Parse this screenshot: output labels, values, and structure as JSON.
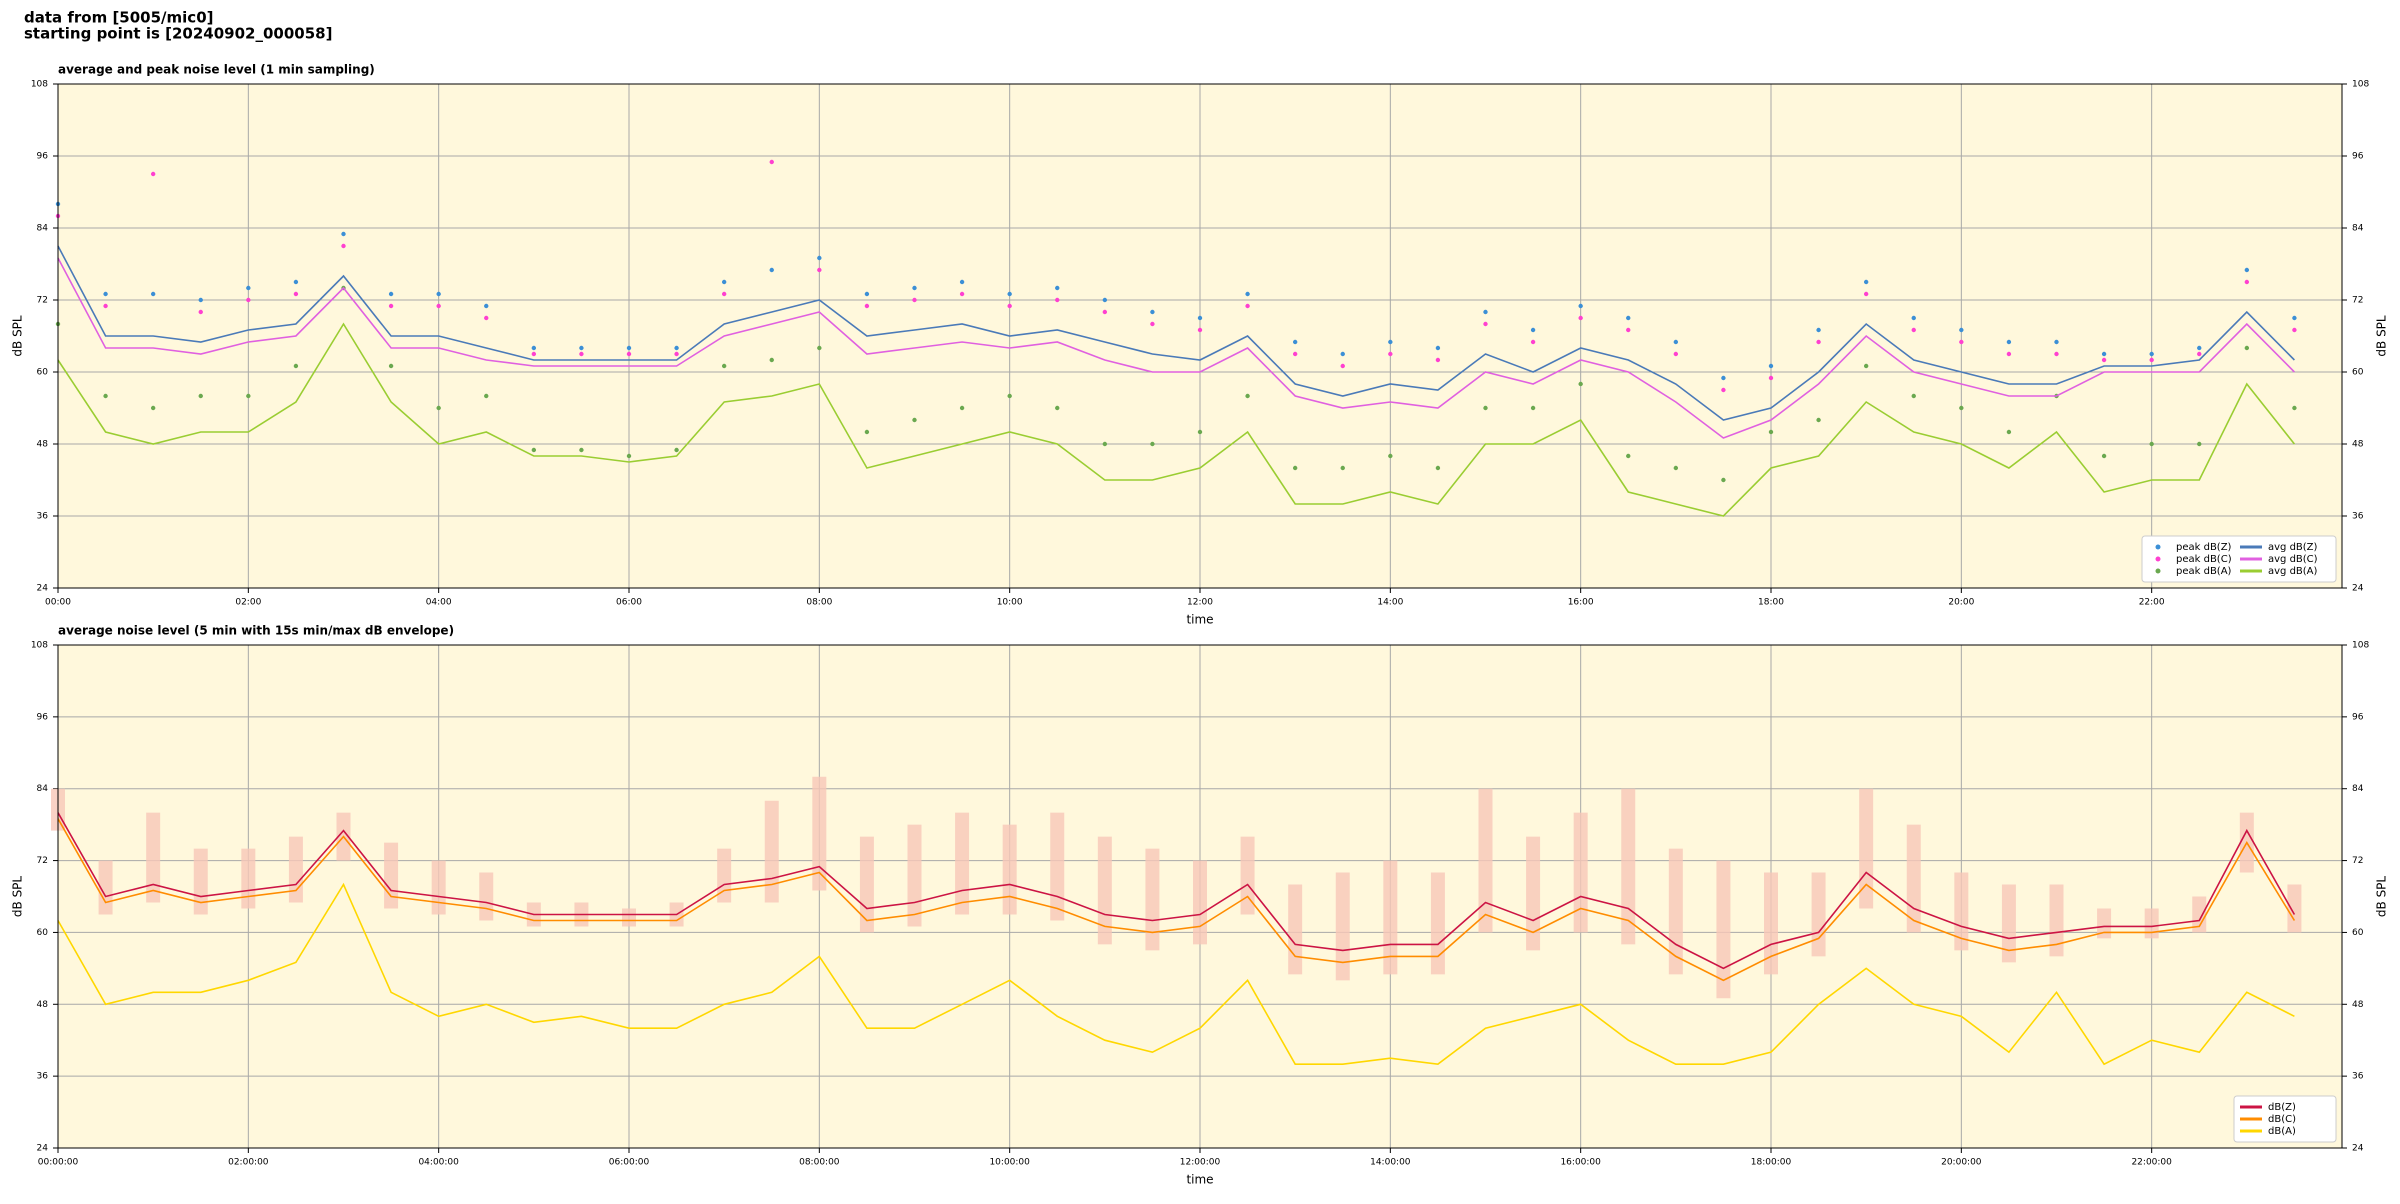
{
  "header": {
    "line1": "data from [5005/mic0]",
    "line2": "starting point is [20240902_000058]"
  },
  "chart_data": [
    {
      "type": "line",
      "title": "average and peak noise level (1 min sampling)",
      "xlabel": "time",
      "ylabel": "dB SPL",
      "legend": "lower right",
      "legend_columns": 2,
      "grid": true,
      "background": "#fff8dc",
      "x": [
        0,
        0.5,
        1,
        1.5,
        2,
        2.5,
        3,
        3.5,
        4,
        4.5,
        5,
        5.5,
        6,
        6.5,
        7,
        7.5,
        8,
        8.5,
        9,
        9.5,
        10,
        10.5,
        11,
        11.5,
        12,
        12.5,
        13,
        13.5,
        14,
        14.5,
        15,
        15.5,
        16,
        16.5,
        17,
        17.5,
        18,
        18.5,
        19,
        19.5,
        20,
        20.5,
        21,
        21.5,
        22,
        22.5,
        23,
        23.5
      ],
      "xlim": [
        0,
        24
      ],
      "xticks": [
        {
          "value": 0,
          "label": "00:00"
        },
        {
          "value": 2,
          "label": "02:00"
        },
        {
          "value": 4,
          "label": "04:00"
        },
        {
          "value": 6,
          "label": "06:00"
        },
        {
          "value": 8,
          "label": "08:00"
        },
        {
          "value": 10,
          "label": "10:00"
        },
        {
          "value": 12,
          "label": "12:00"
        },
        {
          "value": 14,
          "label": "14:00"
        },
        {
          "value": 16,
          "label": "16:00"
        },
        {
          "value": 18,
          "label": "18:00"
        },
        {
          "value": 20,
          "label": "20:00"
        },
        {
          "value": 22,
          "label": "22:00"
        }
      ],
      "ylim": [
        24,
        108
      ],
      "yticks": [
        24,
        36,
        48,
        60,
        72,
        84,
        96,
        108
      ],
      "series": [
        {
          "name": "peak dB(Z)",
          "color": "#3b8fd6",
          "marker": "dot",
          "values": [
            88,
            73,
            73,
            72,
            74,
            75,
            83,
            73,
            73,
            71,
            64,
            64,
            64,
            64,
            75,
            77,
            79,
            73,
            74,
            75,
            73,
            74,
            72,
            70,
            69,
            73,
            65,
            63,
            65,
            64,
            70,
            67,
            71,
            69,
            65,
            59,
            61,
            67,
            75,
            69,
            67,
            65,
            65,
            63,
            63,
            64,
            77,
            69
          ]
        },
        {
          "name": "peak dB(C)",
          "color": "#ff40d0",
          "marker": "dot",
          "values": [
            86,
            71,
            93,
            70,
            72,
            73,
            81,
            71,
            71,
            69,
            63,
            63,
            63,
            63,
            73,
            95,
            77,
            71,
            72,
            73,
            71,
            72,
            70,
            68,
            67,
            71,
            63,
            61,
            63,
            62,
            68,
            65,
            69,
            67,
            63,
            57,
            59,
            65,
            73,
            67,
            65,
            63,
            63,
            62,
            62,
            63,
            75,
            67
          ]
        },
        {
          "name": "peak dB(A)",
          "color": "#6aa84f",
          "marker": "dot",
          "values": [
            68,
            56,
            54,
            56,
            56,
            61,
            74,
            61,
            54,
            56,
            47,
            47,
            46,
            47,
            61,
            62,
            64,
            50,
            52,
            54,
            56,
            54,
            48,
            48,
            50,
            56,
            44,
            44,
            46,
            44,
            54,
            54,
            58,
            46,
            44,
            42,
            50,
            52,
            61,
            56,
            54,
            50,
            56,
            46,
            48,
            48,
            64,
            54
          ]
        },
        {
          "name": "avg dB(Z)",
          "color": "#4a7ab8",
          "marker": "line",
          "values": [
            81,
            66,
            66,
            65,
            67,
            68,
            76,
            66,
            66,
            64,
            62,
            62,
            62,
            62,
            68,
            70,
            72,
            66,
            67,
            68,
            66,
            67,
            65,
            63,
            62,
            66,
            58,
            56,
            58,
            57,
            63,
            60,
            64,
            62,
            58,
            52,
            54,
            60,
            68,
            62,
            60,
            58,
            58,
            61,
            61,
            62,
            70,
            62
          ]
        },
        {
          "name": "avg dB(C)",
          "color": "#e060e0",
          "marker": "line",
          "values": [
            79,
            64,
            64,
            63,
            65,
            66,
            74,
            64,
            64,
            62,
            61,
            61,
            61,
            61,
            66,
            68,
            70,
            63,
            64,
            65,
            64,
            65,
            62,
            60,
            60,
            64,
            56,
            54,
            55,
            54,
            60,
            58,
            62,
            60,
            55,
            49,
            52,
            58,
            66,
            60,
            58,
            56,
            56,
            60,
            60,
            60,
            68,
            60
          ]
        },
        {
          "name": "avg dB(A)",
          "color": "#9acd32",
          "marker": "line",
          "values": [
            62,
            50,
            48,
            50,
            50,
            55,
            68,
            55,
            48,
            50,
            46,
            46,
            45,
            46,
            55,
            56,
            58,
            44,
            46,
            48,
            50,
            48,
            42,
            42,
            44,
            50,
            38,
            38,
            40,
            38,
            48,
            48,
            52,
            40,
            38,
            36,
            44,
            46,
            55,
            50,
            48,
            44,
            50,
            40,
            42,
            42,
            58,
            48
          ]
        }
      ]
    },
    {
      "type": "line",
      "title": "average noise level (5 min with 15s min/max dB envelope)",
      "xlabel": "time",
      "ylabel": "dB SPL",
      "legend": "lower right",
      "legend_columns": 1,
      "grid": true,
      "background": "#fff8dc",
      "x": [
        0,
        0.5,
        1,
        1.5,
        2,
        2.5,
        3,
        3.5,
        4,
        4.5,
        5,
        5.5,
        6,
        6.5,
        7,
        7.5,
        8,
        8.5,
        9,
        9.5,
        10,
        10.5,
        11,
        11.5,
        12,
        12.5,
        13,
        13.5,
        14,
        14.5,
        15,
        15.5,
        16,
        16.5,
        17,
        17.5,
        18,
        18.5,
        19,
        19.5,
        20,
        20.5,
        21,
        21.5,
        22,
        22.5,
        23,
        23.5
      ],
      "xlim": [
        0,
        24
      ],
      "xticks": [
        {
          "value": 0,
          "label": "00:00:00"
        },
        {
          "value": 2,
          "label": "02:00:00"
        },
        {
          "value": 4,
          "label": "04:00:00"
        },
        {
          "value": 6,
          "label": "06:00:00"
        },
        {
          "value": 8,
          "label": "08:00:00"
        },
        {
          "value": 10,
          "label": "10:00:00"
        },
        {
          "value": 12,
          "label": "12:00:00"
        },
        {
          "value": 14,
          "label": "14:00:00"
        },
        {
          "value": 16,
          "label": "16:00:00"
        },
        {
          "value": 18,
          "label": "18:00:00"
        },
        {
          "value": 20,
          "label": "20:00:00"
        },
        {
          "value": 22,
          "label": "22:00:00"
        }
      ],
      "ylim": [
        24,
        108
      ],
      "yticks": [
        24,
        36,
        48,
        60,
        72,
        84,
        96,
        108
      ],
      "envelope": {
        "color": "#f8c8b8",
        "max": [
          84,
          72,
          80,
          74,
          74,
          76,
          80,
          75,
          72,
          70,
          65,
          65,
          64,
          65,
          74,
          82,
          86,
          76,
          78,
          80,
          78,
          80,
          76,
          74,
          72,
          76,
          68,
          70,
          72,
          70,
          84,
          76,
          80,
          84,
          74,
          72,
          70,
          70,
          84,
          78,
          70,
          68,
          68,
          64,
          64,
          66,
          80,
          68
        ],
        "min": [
          77,
          63,
          65,
          63,
          64,
          65,
          72,
          64,
          63,
          62,
          61,
          61,
          61,
          61,
          65,
          65,
          67,
          60,
          61,
          63,
          63,
          62,
          58,
          57,
          58,
          63,
          53,
          52,
          53,
          53,
          60,
          57,
          60,
          58,
          53,
          49,
          53,
          56,
          64,
          60,
          57,
          55,
          56,
          59,
          59,
          60,
          70,
          60
        ]
      },
      "series": [
        {
          "name": "dB(Z)",
          "color": "#cc1444",
          "marker": "line",
          "values": [
            80,
            66,
            68,
            66,
            67,
            68,
            77,
            67,
            66,
            65,
            63,
            63,
            63,
            63,
            68,
            69,
            71,
            64,
            65,
            67,
            68,
            66,
            63,
            62,
            63,
            68,
            58,
            57,
            58,
            58,
            65,
            62,
            66,
            64,
            58,
            54,
            58,
            60,
            70,
            64,
            61,
            59,
            60,
            61,
            61,
            62,
            77,
            63
          ]
        },
        {
          "name": "dB(C)",
          "color": "#ff8c00",
          "marker": "line",
          "values": [
            79,
            65,
            67,
            65,
            66,
            67,
            76,
            66,
            65,
            64,
            62,
            62,
            62,
            62,
            67,
            68,
            70,
            62,
            63,
            65,
            66,
            64,
            61,
            60,
            61,
            66,
            56,
            55,
            56,
            56,
            63,
            60,
            64,
            62,
            56,
            52,
            56,
            59,
            68,
            62,
            59,
            57,
            58,
            60,
            60,
            61,
            75,
            62
          ]
        },
        {
          "name": "dB(A)",
          "color": "#ffd700",
          "marker": "line",
          "values": [
            62,
            48,
            50,
            50,
            52,
            55,
            68,
            50,
            46,
            48,
            45,
            46,
            44,
            44,
            48,
            50,
            56,
            44,
            44,
            48,
            52,
            46,
            42,
            40,
            44,
            52,
            38,
            38,
            39,
            38,
            44,
            46,
            48,
            42,
            38,
            38,
            40,
            48,
            54,
            48,
            46,
            40,
            50,
            38,
            42,
            40,
            50,
            46
          ]
        }
      ]
    }
  ]
}
